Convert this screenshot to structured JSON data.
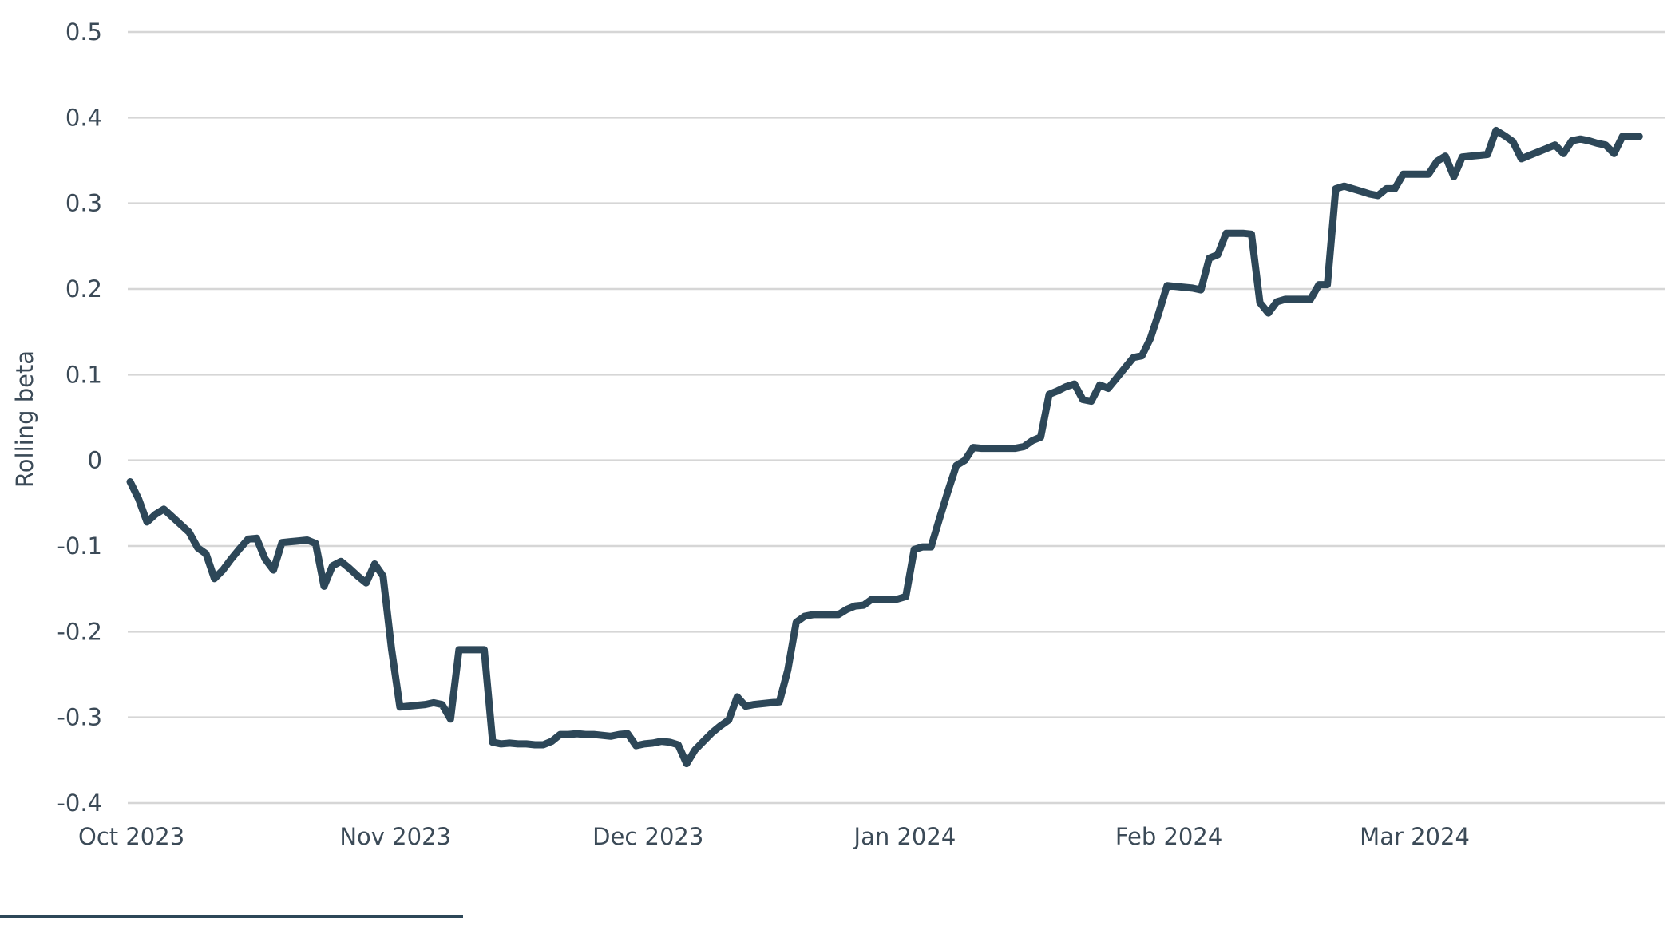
{
  "colors": {
    "line": "#2d4758",
    "grid": "#d6d6d6",
    "text": "#3b4a57",
    "background": "#ffffff"
  },
  "chart_data": {
    "type": "line",
    "title": "",
    "xlabel": "",
    "ylabel": "Rolling beta",
    "ylim": [
      -0.4,
      0.5
    ],
    "xlim": [
      "2023-10-01",
      "2024-03-31"
    ],
    "grid": "horizontal",
    "y_ticks": [
      {
        "value": 0.5,
        "label": "0.5"
      },
      {
        "value": 0.4,
        "label": "0.4"
      },
      {
        "value": 0.3,
        "label": "0.3"
      },
      {
        "value": 0.2,
        "label": "0.2"
      },
      {
        "value": 0.1,
        "label": "0.1"
      },
      {
        "value": 0,
        "label": "0"
      },
      {
        "value": -0.1,
        "label": "-0.1"
      },
      {
        "value": -0.2,
        "label": "-0.2"
      },
      {
        "value": -0.3,
        "label": "-0.3"
      },
      {
        "value": -0.4,
        "label": "-0.4"
      }
    ],
    "x_ticks": [
      {
        "date": "2023-10-01",
        "label": "Oct 2023"
      },
      {
        "date": "2023-11-01",
        "label": "Nov 2023"
      },
      {
        "date": "2023-12-01",
        "label": "Dec 2023"
      },
      {
        "date": "2024-01-01",
        "label": "Jan 2024"
      },
      {
        "date": "2024-02-01",
        "label": "Feb 2024"
      },
      {
        "date": "2024-03-01",
        "label": "Mar 2024"
      }
    ],
    "series": [
      {
        "points": [
          [
            "2023-10-01",
            -0.025
          ],
          [
            "2023-10-02",
            -0.045
          ],
          [
            "2023-10-03",
            -0.072
          ],
          [
            "2023-10-04",
            -0.063
          ],
          [
            "2023-10-05",
            -0.057
          ],
          [
            "2023-10-06",
            -0.066
          ],
          [
            "2023-10-07",
            -0.075
          ],
          [
            "2023-10-08",
            -0.084
          ],
          [
            "2023-10-09",
            -0.102
          ],
          [
            "2023-10-10",
            -0.109
          ],
          [
            "2023-10-11",
            -0.138
          ],
          [
            "2023-10-12",
            -0.128
          ],
          [
            "2023-10-13",
            -0.115
          ],
          [
            "2023-10-14",
            -0.103
          ],
          [
            "2023-10-15",
            -0.092
          ],
          [
            "2023-10-16",
            -0.091
          ],
          [
            "2023-10-17",
            -0.115
          ],
          [
            "2023-10-18",
            -0.128
          ],
          [
            "2023-10-19",
            -0.096
          ],
          [
            "2023-10-20",
            -0.095
          ],
          [
            "2023-10-21",
            -0.094
          ],
          [
            "2023-10-22",
            -0.093
          ],
          [
            "2023-10-23",
            -0.097
          ],
          [
            "2023-10-24",
            -0.147
          ],
          [
            "2023-10-25",
            -0.123
          ],
          [
            "2023-10-26",
            -0.118
          ],
          [
            "2023-10-27",
            -0.126
          ],
          [
            "2023-10-28",
            -0.135
          ],
          [
            "2023-10-29",
            -0.143
          ],
          [
            "2023-10-30",
            -0.121
          ],
          [
            "2023-10-31",
            -0.135
          ],
          [
            "2023-11-01",
            -0.22
          ],
          [
            "2023-11-02",
            -0.288
          ],
          [
            "2023-11-03",
            -0.287
          ],
          [
            "2023-11-04",
            -0.286
          ],
          [
            "2023-11-05",
            -0.285
          ],
          [
            "2023-11-06",
            -0.283
          ],
          [
            "2023-11-07",
            -0.285
          ],
          [
            "2023-11-08",
            -0.302
          ],
          [
            "2023-11-09",
            -0.221
          ],
          [
            "2023-11-10",
            -0.221
          ],
          [
            "2023-11-11",
            -0.221
          ],
          [
            "2023-11-12",
            -0.221
          ],
          [
            "2023-11-13",
            -0.329
          ],
          [
            "2023-11-14",
            -0.331
          ],
          [
            "2023-11-15",
            -0.33
          ],
          [
            "2023-11-16",
            -0.331
          ],
          [
            "2023-11-17",
            -0.331
          ],
          [
            "2023-11-18",
            -0.332
          ],
          [
            "2023-11-19",
            -0.332
          ],
          [
            "2023-11-20",
            -0.328
          ],
          [
            "2023-11-21",
            -0.32
          ],
          [
            "2023-11-22",
            -0.32
          ],
          [
            "2023-11-23",
            -0.319
          ],
          [
            "2023-11-24",
            -0.32
          ],
          [
            "2023-11-25",
            -0.32
          ],
          [
            "2023-11-26",
            -0.321
          ],
          [
            "2023-11-27",
            -0.322
          ],
          [
            "2023-11-28",
            -0.32
          ],
          [
            "2023-11-29",
            -0.319
          ],
          [
            "2023-11-30",
            -0.333
          ],
          [
            "2023-12-01",
            -0.331
          ],
          [
            "2023-12-02",
            -0.33
          ],
          [
            "2023-12-03",
            -0.328
          ],
          [
            "2023-12-04",
            -0.329
          ],
          [
            "2023-12-05",
            -0.332
          ],
          [
            "2023-12-06",
            -0.354
          ],
          [
            "2023-12-07",
            -0.338
          ],
          [
            "2023-12-08",
            -0.328
          ],
          [
            "2023-12-09",
            -0.318
          ],
          [
            "2023-12-10",
            -0.31
          ],
          [
            "2023-12-11",
            -0.303
          ],
          [
            "2023-12-12",
            -0.276
          ],
          [
            "2023-12-13",
            -0.287
          ],
          [
            "2023-12-14",
            -0.285
          ],
          [
            "2023-12-15",
            -0.284
          ],
          [
            "2023-12-16",
            -0.283
          ],
          [
            "2023-12-17",
            -0.282
          ],
          [
            "2023-12-18",
            -0.245
          ],
          [
            "2023-12-19",
            -0.189
          ],
          [
            "2023-12-20",
            -0.182
          ],
          [
            "2023-12-21",
            -0.18
          ],
          [
            "2023-12-22",
            -0.18
          ],
          [
            "2023-12-23",
            -0.18
          ],
          [
            "2023-12-24",
            -0.18
          ],
          [
            "2023-12-25",
            -0.174
          ],
          [
            "2023-12-26",
            -0.17
          ],
          [
            "2023-12-27",
            -0.169
          ],
          [
            "2023-12-28",
            -0.162
          ],
          [
            "2023-12-29",
            -0.162
          ],
          [
            "2023-12-30",
            -0.162
          ],
          [
            "2023-12-31",
            -0.162
          ],
          [
            "2024-01-01",
            -0.159
          ],
          [
            "2024-01-02",
            -0.104
          ],
          [
            "2024-01-03",
            -0.101
          ],
          [
            "2024-01-04",
            -0.101
          ],
          [
            "2024-01-05",
            -0.068
          ],
          [
            "2024-01-06",
            -0.036
          ],
          [
            "2024-01-07",
            -0.006
          ],
          [
            "2024-01-08",
            0.0
          ],
          [
            "2024-01-09",
            0.015
          ],
          [
            "2024-01-10",
            0.014
          ],
          [
            "2024-01-11",
            0.014
          ],
          [
            "2024-01-12",
            0.014
          ],
          [
            "2024-01-13",
            0.014
          ],
          [
            "2024-01-14",
            0.014
          ],
          [
            "2024-01-15",
            0.016
          ],
          [
            "2024-01-16",
            0.023
          ],
          [
            "2024-01-17",
            0.027
          ],
          [
            "2024-01-18",
            0.077
          ],
          [
            "2024-01-19",
            0.081
          ],
          [
            "2024-01-20",
            0.086
          ],
          [
            "2024-01-21",
            0.089
          ],
          [
            "2024-01-22",
            0.071
          ],
          [
            "2024-01-23",
            0.069
          ],
          [
            "2024-01-24",
            0.088
          ],
          [
            "2024-01-25",
            0.084
          ],
          [
            "2024-01-26",
            0.096
          ],
          [
            "2024-01-27",
            0.108
          ],
          [
            "2024-01-28",
            0.12
          ],
          [
            "2024-01-29",
            0.122
          ],
          [
            "2024-01-30",
            0.142
          ],
          [
            "2024-01-31",
            0.172
          ],
          [
            "2024-02-01",
            0.204
          ],
          [
            "2024-02-02",
            0.203
          ],
          [
            "2024-02-03",
            0.202
          ],
          [
            "2024-02-04",
            0.201
          ],
          [
            "2024-02-05",
            0.199
          ],
          [
            "2024-02-06",
            0.236
          ],
          [
            "2024-02-07",
            0.24
          ],
          [
            "2024-02-08",
            0.265
          ],
          [
            "2024-02-09",
            0.265
          ],
          [
            "2024-02-10",
            0.265
          ],
          [
            "2024-02-11",
            0.264
          ],
          [
            "2024-02-12",
            0.184
          ],
          [
            "2024-02-13",
            0.172
          ],
          [
            "2024-02-14",
            0.185
          ],
          [
            "2024-02-15",
            0.188
          ],
          [
            "2024-02-16",
            0.188
          ],
          [
            "2024-02-17",
            0.188
          ],
          [
            "2024-02-18",
            0.188
          ],
          [
            "2024-02-19",
            0.205
          ],
          [
            "2024-02-20",
            0.205
          ],
          [
            "2024-02-21",
            0.317
          ],
          [
            "2024-02-22",
            0.32
          ],
          [
            "2024-02-23",
            0.317
          ],
          [
            "2024-02-24",
            0.314
          ],
          [
            "2024-02-25",
            0.311
          ],
          [
            "2024-02-26",
            0.309
          ],
          [
            "2024-02-27",
            0.317
          ],
          [
            "2024-02-28",
            0.317
          ],
          [
            "2024-02-29",
            0.334
          ],
          [
            "2024-03-01",
            0.334
          ],
          [
            "2024-03-02",
            0.334
          ],
          [
            "2024-03-03",
            0.334
          ],
          [
            "2024-03-04",
            0.349
          ],
          [
            "2024-03-05",
            0.355
          ],
          [
            "2024-03-06",
            0.331
          ],
          [
            "2024-03-07",
            0.354
          ],
          [
            "2024-03-08",
            0.355
          ],
          [
            "2024-03-09",
            0.356
          ],
          [
            "2024-03-10",
            0.357
          ],
          [
            "2024-03-11",
            0.385
          ],
          [
            "2024-03-12",
            0.379
          ],
          [
            "2024-03-13",
            0.372
          ],
          [
            "2024-03-14",
            0.352
          ],
          [
            "2024-03-15",
            0.356
          ],
          [
            "2024-03-16",
            0.36
          ],
          [
            "2024-03-17",
            0.364
          ],
          [
            "2024-03-18",
            0.368
          ],
          [
            "2024-03-19",
            0.358
          ],
          [
            "2024-03-20",
            0.373
          ],
          [
            "2024-03-21",
            0.375
          ],
          [
            "2024-03-22",
            0.373
          ],
          [
            "2024-03-23",
            0.37
          ],
          [
            "2024-03-24",
            0.368
          ],
          [
            "2024-03-25",
            0.358
          ],
          [
            "2024-03-26",
            0.378
          ],
          [
            "2024-03-27",
            0.378
          ],
          [
            "2024-03-28",
            0.378
          ]
        ]
      }
    ]
  }
}
